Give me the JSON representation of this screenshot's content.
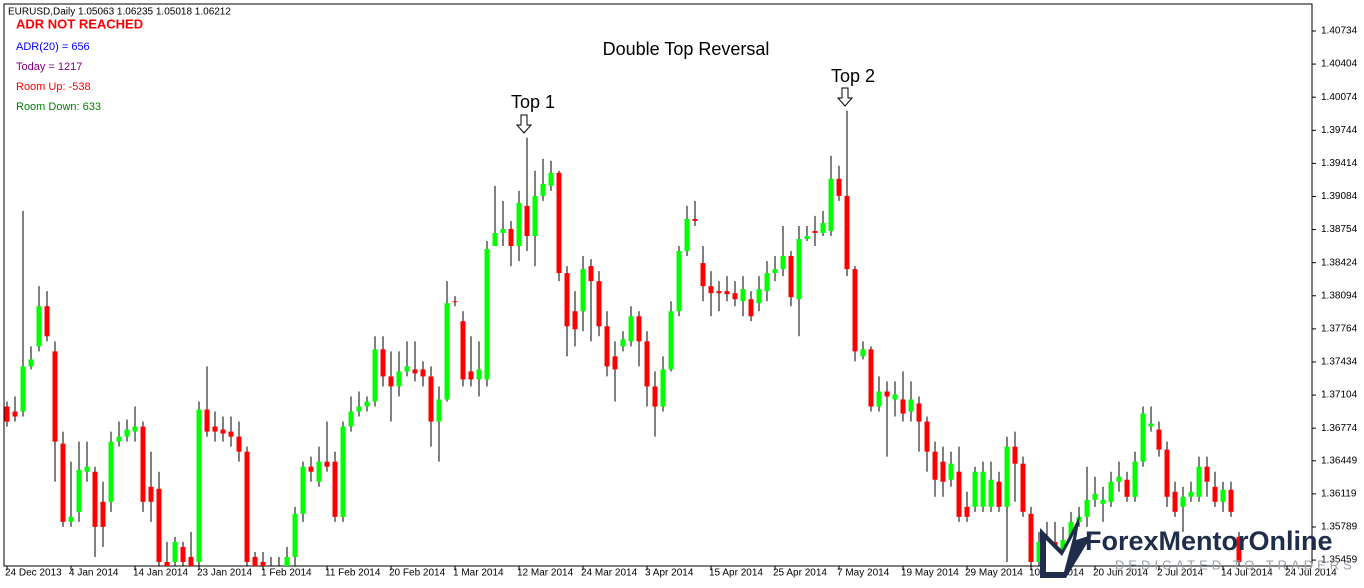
{
  "chart_data": {
    "type": "candlestick",
    "title": "Double Top Reversal",
    "header": "EURUSD,Daily  1.05063 1.06235 1.05018 1.06212",
    "status": {
      "text": "ADR NOT REACHED",
      "color": "#ff0000"
    },
    "info": [
      {
        "text": "ADR(20) = 656",
        "color": "#0000ff"
      },
      {
        "text": "Today = 1217",
        "color": "#800080"
      },
      {
        "text": "Room Up: -538",
        "color": "#ff0000"
      },
      {
        "text": "Room Down: 633",
        "color": "#008000"
      }
    ],
    "annotations": [
      "Top 1",
      "Top 2"
    ],
    "up_color": "#00ff00",
    "down_color": "#ff0000",
    "wick_color": "#000000",
    "grid": false,
    "ylim": [
      1.3538,
      1.40993
    ],
    "yticks": [
      1.40734,
      1.40404,
      1.40074,
      1.39744,
      1.39414,
      1.39084,
      1.38754,
      1.38424,
      1.38094,
      1.37764,
      1.37434,
      1.37104,
      1.36774,
      1.36449,
      1.36119,
      1.35789,
      1.35459
    ],
    "categories": [
      "24 Dec 2013",
      null,
      null,
      null,
      null,
      null,
      null,
      null,
      "4 Jan 2014",
      null,
      null,
      null,
      null,
      null,
      null,
      null,
      "14 Jan 2014",
      null,
      null,
      null,
      null,
      null,
      null,
      null,
      "23 Jan 2014",
      null,
      null,
      null,
      null,
      null,
      null,
      null,
      "1 Feb 2014",
      null,
      null,
      null,
      null,
      null,
      null,
      null,
      "11 Feb 2014",
      null,
      null,
      null,
      null,
      null,
      null,
      null,
      "20 Feb 2014",
      null,
      null,
      null,
      null,
      null,
      null,
      null,
      "1 Mar 2014",
      null,
      null,
      null,
      null,
      null,
      null,
      null,
      "12 Mar 2014",
      null,
      null,
      null,
      null,
      null,
      null,
      null,
      "24 Mar 2014",
      null,
      null,
      null,
      null,
      null,
      null,
      null,
      "3 Apr 2014",
      null,
      null,
      null,
      null,
      null,
      null,
      null,
      "15 Apr 2014",
      null,
      null,
      null,
      null,
      null,
      null,
      null,
      "25 Apr 2014",
      null,
      null,
      null,
      null,
      null,
      null,
      null,
      "7 May 2014",
      null,
      null,
      null,
      null,
      null,
      null,
      null,
      "19 May 2014",
      null,
      null,
      null,
      null,
      null,
      null,
      null,
      "29 May 2014",
      null,
      null,
      null,
      null,
      null,
      null,
      null,
      "10 Jun 2014",
      null,
      null,
      null,
      null,
      null,
      null,
      null,
      "20 Jun 2014",
      null,
      null,
      null,
      null,
      null,
      null,
      null,
      "2 Jul 2014",
      null,
      null,
      null,
      null,
      null,
      null,
      null,
      "14 Jul 2014",
      null,
      null,
      null,
      null,
      null,
      null,
      null,
      "24 Jul 2014"
    ],
    "ohlc": [
      [
        1.3699,
        1.3704,
        1.3679,
        1.3684
      ],
      [
        1.3694,
        1.3709,
        1.3684,
        1.3689
      ],
      [
        1.3694,
        1.3894,
        1.3689,
        1.3739
      ],
      [
        1.3739,
        1.3759,
        1.3736,
        1.3746
      ],
      [
        1.3759,
        1.3819,
        1.3754,
        1.3799
      ],
      [
        1.3799,
        1.3814,
        1.3764,
        1.3769
      ],
      [
        1.3754,
        1.3764,
        1.3624,
        1.3664
      ],
      [
        1.3662,
        1.3674,
        1.3579,
        1.3584
      ],
      [
        1.3584,
        1.3644,
        1.3579,
        1.3589
      ],
      [
        1.3594,
        1.3664,
        1.3584,
        1.3636
      ],
      [
        1.3634,
        1.3664,
        1.3624,
        1.3639
      ],
      [
        1.3634,
        1.3639,
        1.3549,
        1.3579
      ],
      [
        1.3604,
        1.3624,
        1.3559,
        1.3579
      ],
      [
        1.3604,
        1.3674,
        1.3594,
        1.3664
      ],
      [
        1.3664,
        1.3684,
        1.3659,
        1.3669
      ],
      [
        1.3669,
        1.3686,
        1.3664,
        1.3676
      ],
      [
        1.3674,
        1.3699,
        1.3664,
        1.3679
      ],
      [
        1.3679,
        1.3684,
        1.3594,
        1.3604
      ],
      [
        1.3619,
        1.3654,
        1.3584,
        1.3604
      ],
      [
        1.3617,
        1.3634,
        1.3534,
        1.3544
      ],
      [
        1.3544,
        1.3564,
        1.3524,
        1.3529
      ],
      [
        1.3544,
        1.3569,
        1.3529,
        1.3564
      ],
      [
        1.3559,
        1.3564,
        1.3529,
        1.3544
      ],
      [
        1.3549,
        1.3574,
        1.3524,
        1.3539
      ],
      [
        1.3544,
        1.3704,
        1.3539,
        1.3696
      ],
      [
        1.3696,
        1.3739,
        1.3669,
        1.3674
      ],
      [
        1.3679,
        1.3694,
        1.3664,
        1.3674
      ],
      [
        1.3676,
        1.3689,
        1.3664,
        1.3672
      ],
      [
        1.3674,
        1.3689,
        1.3659,
        1.3669
      ],
      [
        1.3669,
        1.3684,
        1.3644,
        1.3654
      ],
      [
        1.3654,
        1.3659,
        1.3539,
        1.3544
      ],
      [
        1.3549,
        1.3554,
        1.3529,
        1.3539
      ],
      [
        1.3544,
        1.3554,
        1.3524,
        1.3529
      ],
      [
        1.3534,
        1.3549,
        1.3524,
        1.3539
      ],
      [
        1.3539,
        1.3549,
        1.3524,
        1.3529
      ],
      [
        1.3529,
        1.3559,
        1.3524,
        1.3549
      ],
      [
        1.3549,
        1.3599,
        1.3539,
        1.3592
      ],
      [
        1.3592,
        1.3644,
        1.3584,
        1.3639
      ],
      [
        1.3639,
        1.3649,
        1.3624,
        1.3634
      ],
      [
        1.3624,
        1.3659,
        1.3619,
        1.3644
      ],
      [
        1.3644,
        1.3684,
        1.3634,
        1.3639
      ],
      [
        1.3644,
        1.3654,
        1.3584,
        1.3589
      ],
      [
        1.3589,
        1.3684,
        1.3584,
        1.3679
      ],
      [
        1.3679,
        1.3709,
        1.3674,
        1.3694
      ],
      [
        1.3694,
        1.3714,
        1.3689,
        1.3699
      ],
      [
        1.3699,
        1.3709,
        1.3694,
        1.3704
      ],
      [
        1.3704,
        1.3769,
        1.3699,
        1.3756
      ],
      [
        1.3756,
        1.3769,
        1.3719,
        1.3729
      ],
      [
        1.3729,
        1.3754,
        1.3684,
        1.3719
      ],
      [
        1.3719,
        1.3754,
        1.3709,
        1.3734
      ],
      [
        1.3734,
        1.3764,
        1.3729,
        1.3739
      ],
      [
        1.3736,
        1.3764,
        1.3724,
        1.3732
      ],
      [
        1.3736,
        1.3744,
        1.3719,
        1.3729
      ],
      [
        1.3729,
        1.3739,
        1.3659,
        1.3684
      ],
      [
        1.3684,
        1.3719,
        1.3644,
        1.3706
      ],
      [
        1.3706,
        1.3824,
        1.3704,
        1.3802
      ],
      [
        1.3804,
        1.3809,
        1.3799,
        1.3803
      ],
      [
        1.3784,
        1.3794,
        1.3719,
        1.3726
      ],
      [
        1.3734,
        1.3769,
        1.3719,
        1.3726
      ],
      [
        1.3726,
        1.3764,
        1.3709,
        1.3736
      ],
      [
        1.3726,
        1.3864,
        1.3719,
        1.3856
      ],
      [
        1.3859,
        1.3919,
        1.3859,
        1.3872
      ],
      [
        1.3872,
        1.3904,
        1.3859,
        1.3876
      ],
      [
        1.3876,
        1.3884,
        1.3839,
        1.3859
      ],
      [
        1.3859,
        1.3914,
        1.3844,
        1.3902
      ],
      [
        1.3899,
        1.3967,
        1.3854,
        1.3869
      ],
      [
        1.3869,
        1.3934,
        1.3839,
        1.3909
      ],
      [
        1.3909,
        1.3946,
        1.3904,
        1.3921
      ],
      [
        1.3919,
        1.3944,
        1.3914,
        1.3932
      ],
      [
        1.3932,
        1.3934,
        1.3824,
        1.3832
      ],
      [
        1.3832,
        1.3839,
        1.3749,
        1.3779
      ],
      [
        1.3794,
        1.3814,
        1.3759,
        1.3776
      ],
      [
        1.3794,
        1.3849,
        1.3774,
        1.3836
      ],
      [
        1.3839,
        1.3846,
        1.3764,
        1.3824
      ],
      [
        1.3824,
        1.3834,
        1.3769,
        1.3779
      ],
      [
        1.3779,
        1.3794,
        1.3729,
        1.3739
      ],
      [
        1.3749,
        1.3764,
        1.3704,
        1.3736
      ],
      [
        1.3759,
        1.3774,
        1.3754,
        1.3766
      ],
      [
        1.3764,
        1.3799,
        1.3759,
        1.3789
      ],
      [
        1.3789,
        1.3794,
        1.3739,
        1.3764
      ],
      [
        1.3764,
        1.3774,
        1.3699,
        1.3719
      ],
      [
        1.3719,
        1.3734,
        1.3669,
        1.3699
      ],
      [
        1.3699,
        1.3749,
        1.3694,
        1.3736
      ],
      [
        1.3736,
        1.3804,
        1.3734,
        1.3794
      ],
      [
        1.3794,
        1.3859,
        1.3789,
        1.3854
      ],
      [
        1.3854,
        1.3899,
        1.3849,
        1.3886
      ],
      [
        1.3886,
        1.3904,
        1.3879,
        1.3884
      ],
      [
        1.3842,
        1.3859,
        1.3804,
        1.3819
      ],
      [
        1.3819,
        1.3834,
        1.3789,
        1.3812
      ],
      [
        1.3814,
        1.3824,
        1.3794,
        1.3812
      ],
      [
        1.3814,
        1.3829,
        1.3804,
        1.3811
      ],
      [
        1.3812,
        1.3824,
        1.3799,
        1.3806
      ],
      [
        1.3804,
        1.3829,
        1.3789,
        1.3816
      ],
      [
        1.3806,
        1.3814,
        1.3784,
        1.3789
      ],
      [
        1.3802,
        1.3829,
        1.3794,
        1.3816
      ],
      [
        1.3814,
        1.3844,
        1.3804,
        1.3832
      ],
      [
        1.3832,
        1.3849,
        1.3824,
        1.3836
      ],
      [
        1.3836,
        1.3879,
        1.3829,
        1.3849
      ],
      [
        1.3849,
        1.3854,
        1.3799,
        1.3808
      ],
      [
        1.3806,
        1.3879,
        1.3769,
        1.3866
      ],
      [
        1.3866,
        1.3879,
        1.3864,
        1.3869
      ],
      [
        1.3874,
        1.3889,
        1.3859,
        1.3872
      ],
      [
        1.3872,
        1.3894,
        1.3869,
        1.3882
      ],
      [
        1.3874,
        1.3949,
        1.3869,
        1.3926
      ],
      [
        1.3926,
        1.3939,
        1.3904,
        1.3909
      ],
      [
        1.3909,
        1.3994,
        1.3829,
        1.3836
      ],
      [
        1.3836,
        1.3839,
        1.3744,
        1.3754
      ],
      [
        1.3749,
        1.3764,
        1.3746,
        1.3756
      ],
      [
        1.3756,
        1.3759,
        1.3694,
        1.3699
      ],
      [
        1.3699,
        1.3729,
        1.3694,
        1.3714
      ],
      [
        1.3714,
        1.3724,
        1.3649,
        1.3709
      ],
      [
        1.3706,
        1.3724,
        1.3689,
        1.3711
      ],
      [
        1.3706,
        1.3734,
        1.3684,
        1.3692
      ],
      [
        1.3694,
        1.3724,
        1.3684,
        1.3706
      ],
      [
        1.3702,
        1.3709,
        1.3654,
        1.3684
      ],
      [
        1.3684,
        1.3689,
        1.3634,
        1.3654
      ],
      [
        1.3654,
        1.3664,
        1.3609,
        1.3626
      ],
      [
        1.3644,
        1.3659,
        1.3609,
        1.3624
      ],
      [
        1.3626,
        1.3654,
        1.3619,
        1.3642
      ],
      [
        1.3634,
        1.3659,
        1.3584,
        1.3589
      ],
      [
        1.3599,
        1.3614,
        1.3584,
        1.3589
      ],
      [
        1.3599,
        1.3639,
        1.3594,
        1.3634
      ],
      [
        1.3599,
        1.3644,
        1.3594,
        1.3634
      ],
      [
        1.3599,
        1.3644,
        1.3594,
        1.3626
      ],
      [
        1.3624,
        1.3634,
        1.3594,
        1.3599
      ],
      [
        1.3599,
        1.3669,
        1.3544,
        1.3659
      ],
      [
        1.3659,
        1.3674,
        1.3604,
        1.3642
      ],
      [
        1.3642,
        1.3649,
        1.3589,
        1.3594
      ],
      [
        1.3592,
        1.3599,
        1.3534,
        1.3544
      ],
      [
        1.3544,
        1.3574,
        1.3529,
        1.3564
      ],
      [
        1.3564,
        1.3584,
        1.3544,
        1.3569
      ],
      [
        1.3564,
        1.3584,
        1.3539,
        1.3559
      ],
      [
        1.3556,
        1.3579,
        1.3544,
        1.3566
      ],
      [
        1.3569,
        1.3594,
        1.3559,
        1.3584
      ],
      [
        1.3584,
        1.3599,
        1.3579,
        1.3589
      ],
      [
        1.3589,
        1.3639,
        1.3579,
        1.3606
      ],
      [
        1.3606,
        1.3629,
        1.3599,
        1.3612
      ],
      [
        1.3602,
        1.3619,
        1.3584,
        1.3606
      ],
      [
        1.3604,
        1.3634,
        1.3599,
        1.3624
      ],
      [
        1.3624,
        1.3644,
        1.3614,
        1.3629
      ],
      [
        1.3626,
        1.3634,
        1.3604,
        1.3609
      ],
      [
        1.3609,
        1.3654,
        1.3604,
        1.3644
      ],
      [
        1.3644,
        1.3699,
        1.3639,
        1.3692
      ],
      [
        1.3679,
        1.3699,
        1.3674,
        1.3682
      ],
      [
        1.3676,
        1.3684,
        1.3649,
        1.3656
      ],
      [
        1.3656,
        1.3664,
        1.3599,
        1.3609
      ],
      [
        1.3614,
        1.3624,
        1.3589,
        1.3594
      ],
      [
        1.3599,
        1.3619,
        1.3574,
        1.3609
      ],
      [
        1.3609,
        1.3624,
        1.3604,
        1.3614
      ],
      [
        1.3609,
        1.3649,
        1.3604,
        1.3639
      ],
      [
        1.3639,
        1.3649,
        1.3609,
        1.3624
      ],
      [
        1.3619,
        1.3634,
        1.3599,
        1.3604
      ],
      [
        1.3604,
        1.3624,
        1.3594,
        1.3616
      ],
      [
        1.3616,
        1.3624,
        1.3589,
        1.3594
      ],
      [
        1.3569,
        1.3574,
        1.3529,
        1.3544
      ],
      null,
      null,
      null,
      null,
      null,
      null
    ]
  },
  "logo": {
    "name": "ForexMentorOnline",
    "tagline": "DEDICATED TO TRADERS"
  }
}
